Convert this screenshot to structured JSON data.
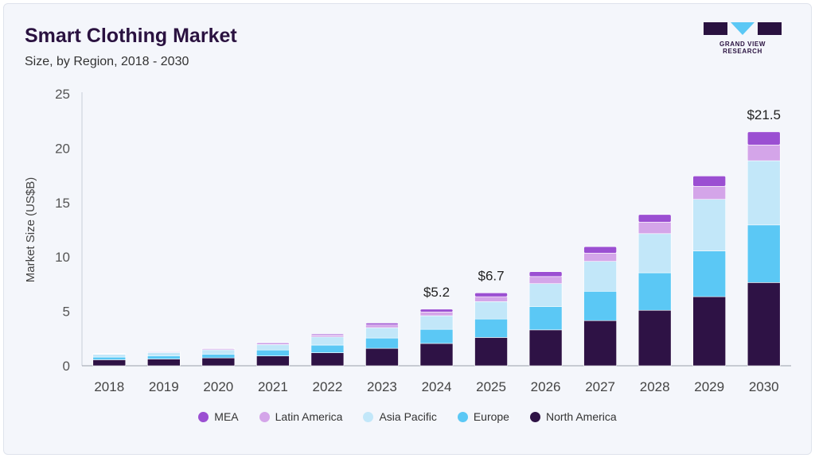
{
  "header": {
    "title": "Smart Clothing Market",
    "subtitle": "Size, by Region, 2018 - 2030"
  },
  "logo": {
    "text": "GRAND VIEW RESEARCH",
    "color": "#2a1240",
    "accent": "#5bc8f5"
  },
  "chart_data": {
    "type": "bar",
    "stacked": true,
    "ylabel": "Market Size (US$B)",
    "xlabel": "",
    "ylim": [
      0,
      25
    ],
    "yticks": [
      0,
      5,
      10,
      15,
      20,
      25
    ],
    "grid": false,
    "legend_position": "bottom",
    "categories": [
      "2018",
      "2019",
      "2020",
      "2021",
      "2022",
      "2023",
      "2024",
      "2025",
      "2026",
      "2027",
      "2028",
      "2029",
      "2030"
    ],
    "series": [
      {
        "name": "North America",
        "color": "#2e1245",
        "values": [
          0.55,
          0.62,
          0.72,
          0.9,
          1.2,
          1.6,
          2.05,
          2.6,
          3.3,
          4.15,
          5.1,
          6.35,
          7.65
        ]
      },
      {
        "name": "Europe",
        "color": "#5bc8f5",
        "values": [
          0.25,
          0.3,
          0.35,
          0.55,
          0.7,
          0.95,
          1.3,
          1.7,
          2.15,
          2.7,
          3.45,
          4.2,
          5.3
        ]
      },
      {
        "name": "Asia Pacific",
        "color": "#c2e7f9",
        "values": [
          0.25,
          0.3,
          0.4,
          0.5,
          0.75,
          0.95,
          1.25,
          1.6,
          2.1,
          2.75,
          3.6,
          4.75,
          5.9
        ]
      },
      {
        "name": "Latin America",
        "color": "#d4a5e9",
        "values": [
          0.05,
          0.07,
          0.09,
          0.12,
          0.17,
          0.25,
          0.35,
          0.45,
          0.65,
          0.75,
          1.05,
          1.2,
          1.45
        ]
      },
      {
        "name": "MEA",
        "color": "#9b4fd2",
        "values": [
          0.03,
          0.04,
          0.05,
          0.07,
          0.1,
          0.17,
          0.25,
          0.35,
          0.45,
          0.6,
          0.7,
          0.95,
          1.2
        ]
      }
    ],
    "legend_order": [
      "MEA",
      "Latin America",
      "Asia Pacific",
      "Europe",
      "North America"
    ],
    "annotations": [
      {
        "category": "2024",
        "label": "$5.2"
      },
      {
        "category": "2025",
        "label": "$6.7"
      },
      {
        "category": "2030",
        "label": "$21.5"
      }
    ]
  }
}
